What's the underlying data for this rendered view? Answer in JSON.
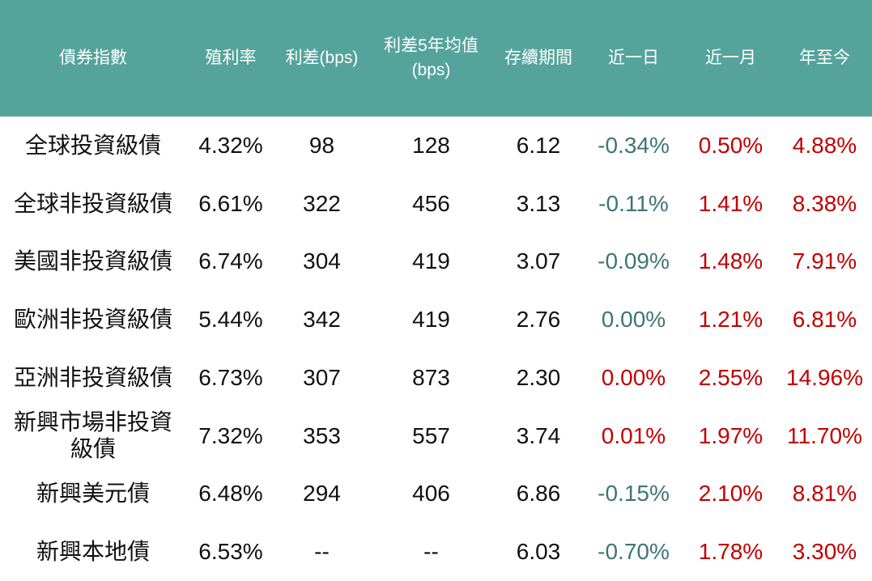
{
  "colors": {
    "header_bg": "#55a49c",
    "header_text": "#ffffff",
    "body_text": "#111111",
    "negative": "#3e7477",
    "positive": "#c00000",
    "row_bg": "#ffffff"
  },
  "table": {
    "columns": [
      {
        "key": "bond-index",
        "label": "債券指數"
      },
      {
        "key": "yield",
        "label": "殖利率"
      },
      {
        "key": "spread-bps",
        "label": "利差(bps)"
      },
      {
        "key": "spread-5y-avg",
        "label": "利差5年均值\n(bps)"
      },
      {
        "key": "duration",
        "label": "存續期間"
      },
      {
        "key": "change-1d",
        "label": "近一日"
      },
      {
        "key": "change-1m",
        "label": "近一月"
      },
      {
        "key": "change-ytd",
        "label": "年至今"
      }
    ],
    "rows": [
      {
        "cells": [
          {
            "text": "全球投資級債"
          },
          {
            "text": "4.32%"
          },
          {
            "text": "98"
          },
          {
            "text": "128"
          },
          {
            "text": "6.12"
          },
          {
            "text": "-0.34%",
            "color": "negative"
          },
          {
            "text": "0.50%",
            "color": "positive"
          },
          {
            "text": "4.88%",
            "color": "positive"
          }
        ]
      },
      {
        "cells": [
          {
            "text": "全球非投資級債"
          },
          {
            "text": "6.61%"
          },
          {
            "text": "322"
          },
          {
            "text": "456"
          },
          {
            "text": "3.13"
          },
          {
            "text": "-0.11%",
            "color": "negative"
          },
          {
            "text": "1.41%",
            "color": "positive"
          },
          {
            "text": "8.38%",
            "color": "positive"
          }
        ]
      },
      {
        "cells": [
          {
            "text": "美國非投資級債"
          },
          {
            "text": "6.74%"
          },
          {
            "text": "304"
          },
          {
            "text": "419"
          },
          {
            "text": "3.07"
          },
          {
            "text": "-0.09%",
            "color": "negative"
          },
          {
            "text": "1.48%",
            "color": "positive"
          },
          {
            "text": "7.91%",
            "color": "positive"
          }
        ]
      },
      {
        "cells": [
          {
            "text": "歐洲非投資級債"
          },
          {
            "text": "5.44%"
          },
          {
            "text": "342"
          },
          {
            "text": "419"
          },
          {
            "text": "2.76"
          },
          {
            "text": "0.00%",
            "color": "negative"
          },
          {
            "text": "1.21%",
            "color": "positive"
          },
          {
            "text": "6.81%",
            "color": "positive"
          }
        ]
      },
      {
        "cells": [
          {
            "text": "亞洲非投資級債"
          },
          {
            "text": "6.73%"
          },
          {
            "text": "307"
          },
          {
            "text": "873"
          },
          {
            "text": "2.30"
          },
          {
            "text": "0.00%",
            "color": "positive"
          },
          {
            "text": "2.55%",
            "color": "positive"
          },
          {
            "text": "14.96%",
            "color": "positive"
          }
        ]
      },
      {
        "cells": [
          {
            "text": "新興市場非投資\n級債"
          },
          {
            "text": "7.32%"
          },
          {
            "text": "353"
          },
          {
            "text": "557"
          },
          {
            "text": "3.74"
          },
          {
            "text": "0.01%",
            "color": "positive"
          },
          {
            "text": "1.97%",
            "color": "positive"
          },
          {
            "text": "11.70%",
            "color": "positive"
          }
        ]
      },
      {
        "cells": [
          {
            "text": "新興美元債"
          },
          {
            "text": "6.48%"
          },
          {
            "text": "294"
          },
          {
            "text": "406"
          },
          {
            "text": "6.86"
          },
          {
            "text": "-0.15%",
            "color": "negative"
          },
          {
            "text": "2.10%",
            "color": "positive"
          },
          {
            "text": "8.81%",
            "color": "positive"
          }
        ]
      },
      {
        "cells": [
          {
            "text": "新興本地債"
          },
          {
            "text": "6.53%"
          },
          {
            "text": "--"
          },
          {
            "text": "--"
          },
          {
            "text": "6.03"
          },
          {
            "text": "-0.70%",
            "color": "negative"
          },
          {
            "text": "1.78%",
            "color": "positive"
          },
          {
            "text": "3.30%",
            "color": "positive"
          }
        ]
      }
    ]
  },
  "chart_data": {
    "type": "table",
    "title": "",
    "columns": [
      "債券指數",
      "殖利率",
      "利差(bps)",
      "利差5年均值(bps)",
      "存續期間",
      "近一日",
      "近一月",
      "年至今"
    ],
    "rows": [
      [
        "全球投資級債",
        "4.32%",
        "98",
        "128",
        "6.12",
        "-0.34%",
        "0.50%",
        "4.88%"
      ],
      [
        "全球非投資級債",
        "6.61%",
        "322",
        "456",
        "3.13",
        "-0.11%",
        "1.41%",
        "8.38%"
      ],
      [
        "美國非投資級債",
        "6.74%",
        "304",
        "419",
        "3.07",
        "-0.09%",
        "1.48%",
        "7.91%"
      ],
      [
        "歐洲非投資級債",
        "5.44%",
        "342",
        "419",
        "2.76",
        "0.00%",
        "1.21%",
        "6.81%"
      ],
      [
        "亞洲非投資級債",
        "6.73%",
        "307",
        "873",
        "2.30",
        "0.00%",
        "2.55%",
        "14.96%"
      ],
      [
        "新興市場非投資級債",
        "7.32%",
        "353",
        "557",
        "3.74",
        "0.01%",
        "1.97%",
        "11.70%"
      ],
      [
        "新興美元債",
        "6.48%",
        "294",
        "406",
        "6.86",
        "-0.15%",
        "2.10%",
        "8.81%"
      ],
      [
        "新興本地債",
        "6.53%",
        "--",
        "--",
        "6.03",
        "-0.70%",
        "1.78%",
        "3.30%"
      ]
    ],
    "notes": "Negative daily changes rendered teal (#3e7477); positive/most changes rendered red (#c00000); 0.00% in row 歐洲非投資級債 is teal while 0.00% in row 亞洲非投資級債 is red."
  }
}
